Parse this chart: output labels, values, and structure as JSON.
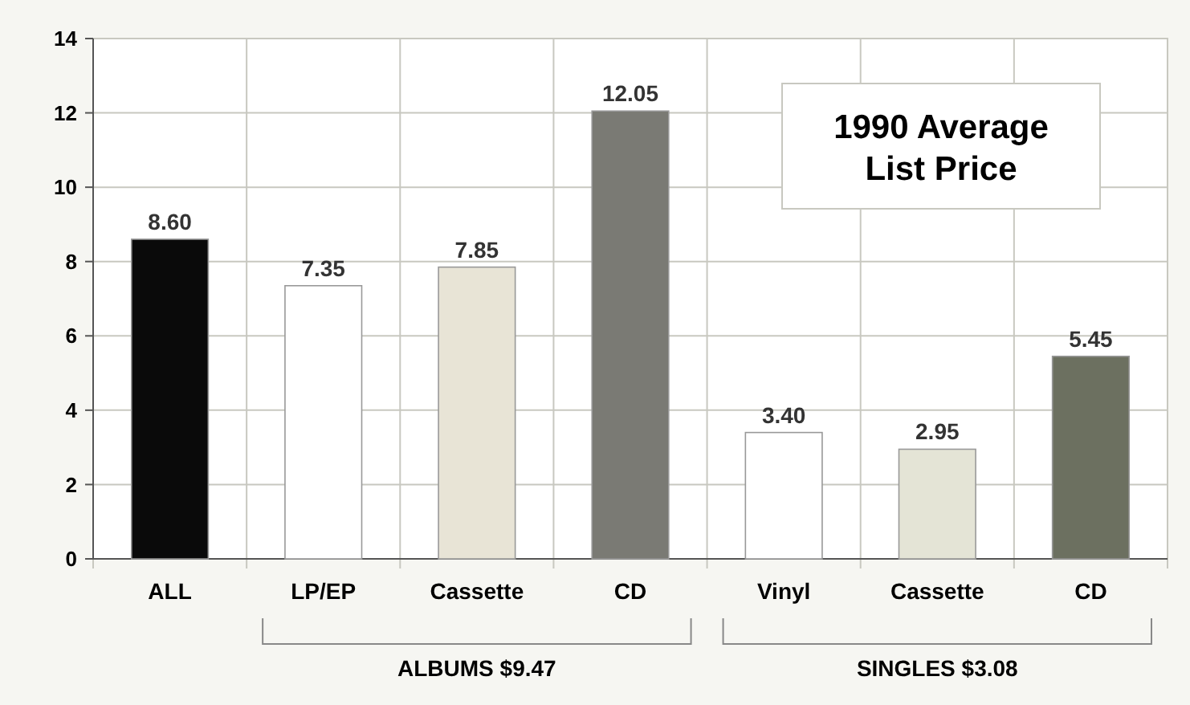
{
  "chart_data": {
    "type": "bar",
    "title": "1990 Average List Price",
    "categories": [
      "ALL",
      "LP/EP",
      "Cassette",
      "CD",
      "Vinyl",
      "Cassette",
      "CD"
    ],
    "values": [
      8.6,
      7.35,
      7.85,
      12.05,
      3.4,
      2.95,
      5.45
    ],
    "colors": [
      "#0a0a0a",
      "#ffffff",
      "#e8e4d6",
      "#7a7a74",
      "#ffffff",
      "#e4e4d6",
      "#6c7060"
    ],
    "value_labels": [
      "8.60",
      "7.35",
      "7.85",
      "12.05",
      "3.40",
      "2.95",
      "5.45"
    ],
    "ylim": [
      0,
      14
    ],
    "yticks": [
      0,
      2,
      4,
      6,
      8,
      10,
      12,
      14
    ],
    "grid": true,
    "annotations": [
      "ALBUMS $9.47",
      "SINGLES $3.08"
    ]
  }
}
